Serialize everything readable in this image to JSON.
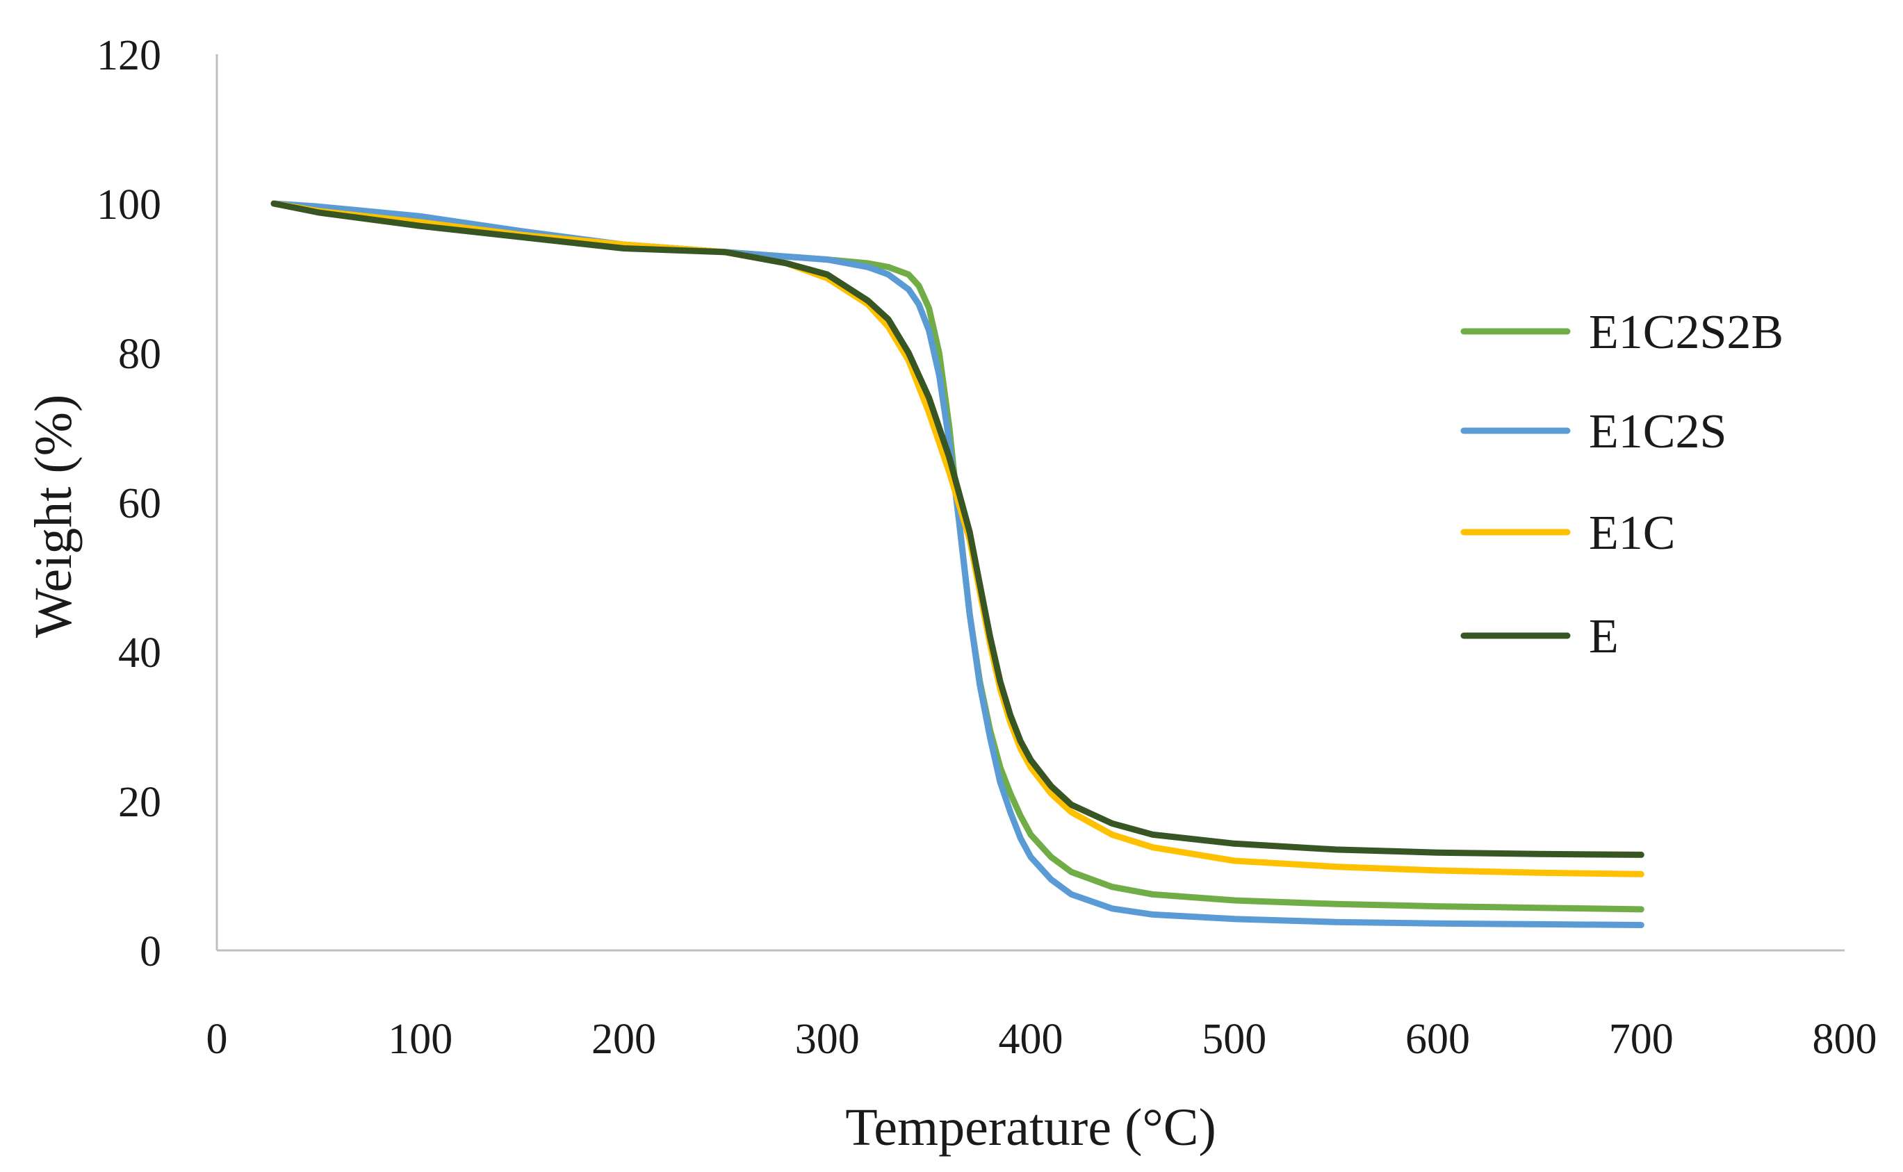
{
  "chart_data": {
    "type": "line",
    "title": "",
    "xlabel": "Temperature (°C)",
    "ylabel": "Weight (%)",
    "xlim": [
      0,
      800
    ],
    "ylim": [
      0,
      120
    ],
    "xticks": [
      "0",
      "100",
      "200",
      "300",
      "400",
      "500",
      "600",
      "700",
      "800"
    ],
    "yticks": [
      "0",
      "20",
      "40",
      "60",
      "80",
      "100",
      "120"
    ],
    "xtick_values": [
      0,
      100,
      200,
      300,
      400,
      500,
      600,
      700,
      800
    ],
    "ytick_values": [
      0,
      20,
      40,
      60,
      80,
      100,
      120
    ],
    "grid": false,
    "legend_position": "right",
    "series": [
      {
        "name": "E1C2S2B",
        "color": "#70ad47",
        "x": [
          28,
          50,
          100,
          150,
          200,
          250,
          300,
          320,
          330,
          340,
          345,
          350,
          355,
          360,
          365,
          370,
          375,
          380,
          385,
          390,
          395,
          400,
          410,
          420,
          440,
          460,
          500,
          550,
          600,
          650,
          700
        ],
        "y": [
          100,
          99.5,
          98,
          96,
          94.5,
          93.5,
          92.5,
          92,
          91.5,
          90.5,
          89,
          86,
          80,
          70,
          57,
          45,
          36,
          29.5,
          24.5,
          21,
          18,
          15.5,
          12.5,
          10.5,
          8.5,
          7.5,
          6.7,
          6.2,
          5.9,
          5.7,
          5.5
        ]
      },
      {
        "name": "E1C2S",
        "color": "#5b9bd5",
        "x": [
          28,
          50,
          100,
          150,
          200,
          250,
          300,
          320,
          330,
          340,
          345,
          350,
          355,
          360,
          365,
          370,
          375,
          380,
          385,
          390,
          395,
          400,
          410,
          420,
          440,
          460,
          500,
          550,
          600,
          650,
          700
        ],
        "y": [
          100,
          99.6,
          98.3,
          96.3,
          94.5,
          93.5,
          92.5,
          91.5,
          90.5,
          88.5,
          86.5,
          83,
          77,
          68,
          57,
          45,
          35.5,
          28.5,
          22.5,
          18.5,
          15,
          12.5,
          9.5,
          7.5,
          5.6,
          4.8,
          4.2,
          3.8,
          3.6,
          3.5,
          3.4
        ]
      },
      {
        "name": "E1C",
        "color": "#ffc000",
        "x": [
          28,
          50,
          100,
          150,
          200,
          250,
          280,
          300,
          320,
          330,
          340,
          350,
          360,
          370,
          375,
          380,
          385,
          390,
          395,
          400,
          410,
          420,
          440,
          460,
          500,
          550,
          600,
          650,
          700
        ],
        "y": [
          100,
          99,
          97.5,
          95.8,
          94.5,
          93.5,
          92,
          90,
          86.5,
          83.5,
          79,
          72,
          64,
          55,
          48,
          41,
          35,
          30.5,
          27,
          24.5,
          21,
          18.5,
          15.5,
          13.8,
          12,
          11.2,
          10.7,
          10.4,
          10.2
        ]
      },
      {
        "name": "E",
        "color": "#375623",
        "x": [
          28,
          50,
          100,
          150,
          200,
          250,
          280,
          300,
          320,
          330,
          340,
          350,
          360,
          370,
          375,
          380,
          385,
          390,
          395,
          400,
          410,
          420,
          440,
          460,
          500,
          550,
          600,
          650,
          700
        ],
        "y": [
          100,
          98.8,
          97,
          95.5,
          94,
          93.5,
          92,
          90.5,
          87,
          84.5,
          80,
          74,
          66,
          56,
          49,
          42,
          36,
          31.5,
          28,
          25.5,
          22,
          19.5,
          17,
          15.5,
          14.3,
          13.5,
          13.1,
          12.9,
          12.8
        ]
      }
    ]
  }
}
